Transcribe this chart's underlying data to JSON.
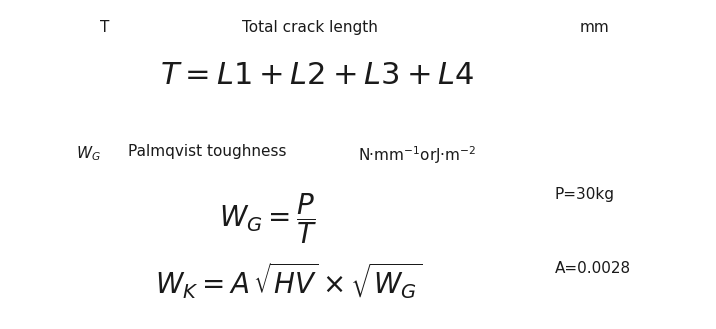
{
  "bg_color": "#ffffff",
  "text_color": "#1a1a1a",
  "line1_label": "T",
  "line1_desc": "Total crack length",
  "line1_unit": "mm",
  "line1_formula": "$\\mathit{T} = \\mathit{L}\\mathit{1} + \\mathit{L}\\mathit{2} + \\mathit{L}\\mathit{3} + \\mathit{L}\\mathit{4}$",
  "line2_label": "$W_G$",
  "line2_desc": "Palmqvist toughness",
  "line2_unit": "N·mm$^{-1}$orJ·m$^{-2}$",
  "line2_formula": "$W_G = \\dfrac{P}{T}$",
  "line2_note": "P=30kg",
  "line3_formula": "$W_K = A\\,\\sqrt{HV} \\times \\sqrt{W_G}$",
  "line3_note": "A=0.0028"
}
